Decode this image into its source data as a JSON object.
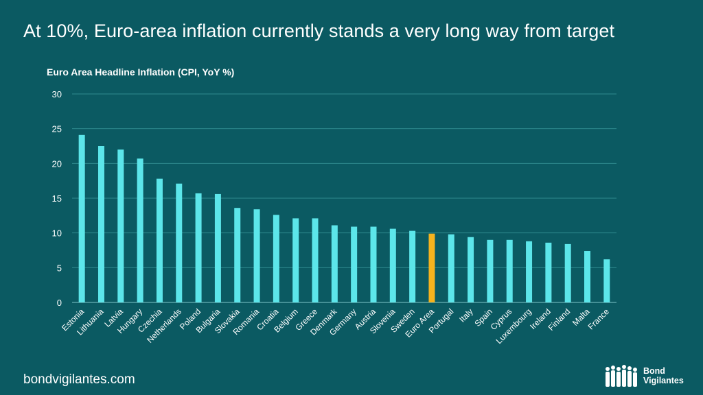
{
  "page": {
    "title": "At 10%, Euro-area inflation currently stands a very long way from target",
    "footer_url": "bondvigilantes.com",
    "logo_line1": "Bond",
    "logo_line2": "Vigilantes"
  },
  "colors": {
    "background": "#0b5a62",
    "bar": "#5ce6ea",
    "highlight_bar": "#f5b31e",
    "gridline": "#2f8a8f",
    "text": "#ffffff"
  },
  "chart_data": {
    "type": "bar",
    "title": "Euro Area Headline Inflation (CPI, YoY %)",
    "xlabel": "",
    "ylabel": "",
    "ylim": [
      0,
      30
    ],
    "yticks": [
      0,
      5,
      10,
      15,
      20,
      25,
      30
    ],
    "grid": true,
    "highlight": "Euro Area",
    "categories": [
      "Estonia",
      "Lithuania",
      "Latvia",
      "Hungary",
      "Czechia",
      "Netherlands",
      "Poland",
      "Bulgaria",
      "Slovakia",
      "Romania",
      "Croatia",
      "Belgium",
      "Greece",
      "Denmark",
      "Germany",
      "Austria",
      "Slovenia",
      "Sweden",
      "Euro Area",
      "Portugal",
      "Italy",
      "Spain",
      "Cyprus",
      "Luxembourg",
      "Ireland",
      "Finland",
      "Malta",
      "France"
    ],
    "values": [
      24.1,
      22.5,
      22.0,
      20.7,
      17.8,
      17.1,
      15.7,
      15.6,
      13.6,
      13.4,
      12.6,
      12.1,
      12.1,
      11.1,
      10.9,
      10.9,
      10.6,
      10.3,
      9.9,
      9.8,
      9.4,
      9.0,
      9.0,
      8.8,
      8.6,
      8.4,
      7.4,
      6.2
    ]
  }
}
